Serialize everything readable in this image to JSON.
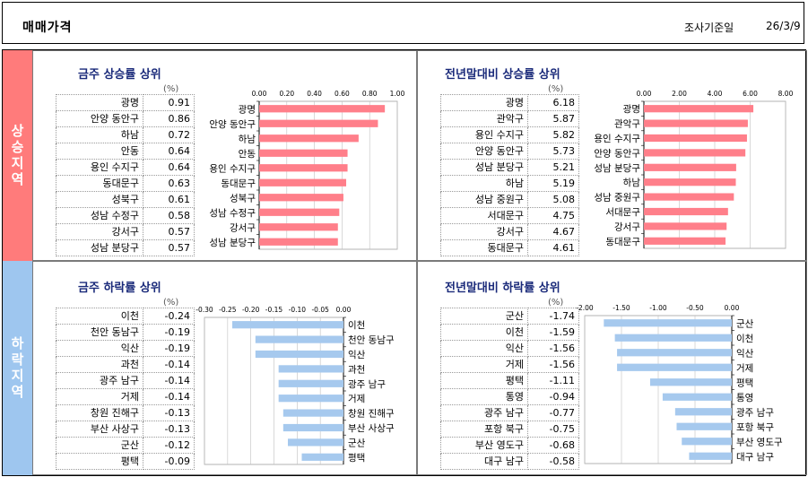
{
  "header": {
    "title": "매매가격",
    "date_label": "조사기준일",
    "date_value": "26/3/9"
  },
  "side_labels": {
    "up": "상승지역",
    "down": "하락지역"
  },
  "pct_unit": "(%)",
  "panels": [
    {
      "title": "금주 상승률 상위",
      "chart_data": {
        "type": "bar",
        "title": "금주 상승률 상위",
        "categories": [
          "광명",
          "안양 동안구",
          "하남",
          "안동",
          "용인 수지구",
          "동대문구",
          "성북구",
          "성남 수정구",
          "강서구",
          "성남 분당구"
        ],
        "values": [
          0.91,
          0.86,
          0.72,
          0.64,
          0.64,
          0.63,
          0.61,
          0.58,
          0.57,
          0.57
        ],
        "xlim": [
          0,
          1.0
        ],
        "ticks": [
          0,
          0.2,
          0.4,
          0.6,
          0.8,
          1.0
        ],
        "tick_labels": [
          "0.00",
          "0.20",
          "0.40",
          "0.60",
          "0.80",
          "1.00"
        ],
        "grid": true,
        "color": "#ff7f8a"
      }
    },
    {
      "title": "전년말대비 상승률 상위",
      "chart_data": {
        "type": "bar",
        "title": "전년말대비 상승률 상위",
        "categories": [
          "광명",
          "관악구",
          "용인 수지구",
          "안양 동안구",
          "성남 분당구",
          "하남",
          "성남 중원구",
          "서대문구",
          "강서구",
          "동대문구"
        ],
        "values": [
          6.18,
          5.87,
          5.82,
          5.73,
          5.21,
          5.19,
          5.08,
          4.75,
          4.67,
          4.61
        ],
        "xlim": [
          0,
          8.0
        ],
        "ticks": [
          0,
          2,
          4,
          6,
          8
        ],
        "tick_labels": [
          "0.00",
          "2.00",
          "4.00",
          "6.00",
          "8.00"
        ],
        "grid": true,
        "color": "#ff7f8a"
      }
    },
    {
      "title": "금주 하락률 상위",
      "chart_data": {
        "type": "bar",
        "title": "금주 하락률 상위",
        "categories": [
          "이천",
          "천안 동남구",
          "익산",
          "과천",
          "광주 남구",
          "거제",
          "창원 진해구",
          "부산 사상구",
          "군산",
          "평택"
        ],
        "values": [
          -0.24,
          -0.19,
          -0.19,
          -0.14,
          -0.14,
          -0.14,
          -0.13,
          -0.13,
          -0.12,
          -0.09
        ],
        "xlim": [
          -0.3,
          0.0
        ],
        "ticks": [
          -0.3,
          -0.25,
          -0.2,
          -0.15,
          -0.1,
          -0.05,
          0
        ],
        "tick_labels": [
          "-0.30",
          "-0.25",
          "-0.20",
          "-0.15",
          "-0.10",
          "-0.05",
          "0.00"
        ],
        "grid": true,
        "color": "#a6c9ee"
      }
    },
    {
      "title": "전년말대비 하락률 상위",
      "chart_data": {
        "type": "bar",
        "title": "전년말대비 하락률 상위",
        "categories": [
          "군산",
          "이천",
          "익산",
          "거제",
          "평택",
          "통영",
          "광주 남구",
          "포항 북구",
          "부산 영도구",
          "대구 남구"
        ],
        "values": [
          -1.74,
          -1.59,
          -1.56,
          -1.56,
          -1.11,
          -0.94,
          -0.77,
          -0.75,
          -0.68,
          -0.58
        ],
        "xlim": [
          -2.0,
          0.0
        ],
        "ticks": [
          -2.0,
          -1.5,
          -1.0,
          -0.5,
          0
        ],
        "tick_labels": [
          "-2.00",
          "-1.50",
          "-1.00",
          "-0.50",
          "0.00"
        ],
        "grid": true,
        "color": "#a6c9ee"
      }
    }
  ]
}
